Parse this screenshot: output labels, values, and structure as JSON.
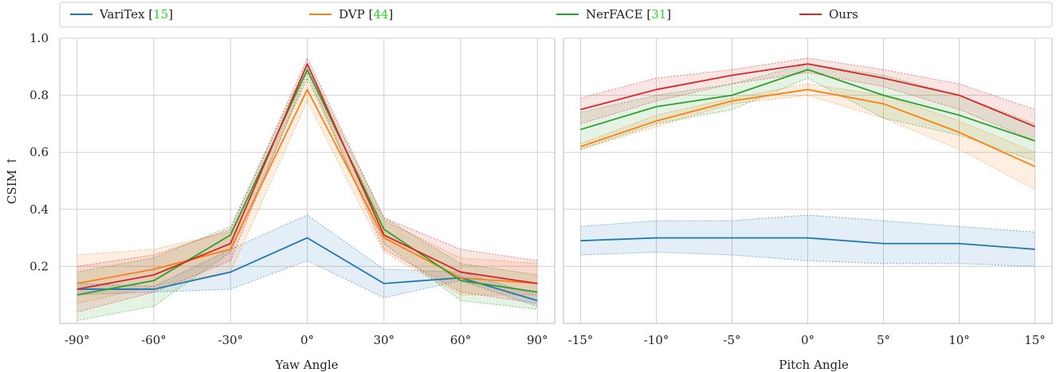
{
  "legend": [
    {
      "name": "VariTex",
      "ref": "15",
      "color": "#1f77b4"
    },
    {
      "name": "DVP",
      "ref": "44",
      "color": "#ff7f0e"
    },
    {
      "name": "NerFACE",
      "ref": "31",
      "color": "#2ca02c"
    },
    {
      "name": "Ours",
      "ref": "",
      "color": "#d62728"
    }
  ],
  "colors": {
    "ref_link": "#22dd22",
    "grid": "#d0d0d0",
    "frame": "#bbbbbb"
  },
  "chart_data": [
    {
      "type": "line",
      "xlabel": "Yaw Angle",
      "ylabel": "CSIM ↑",
      "x_tick_labels": [
        "-90°",
        "-60°",
        "-30°",
        "0°",
        "30°",
        "60°",
        "90°"
      ],
      "x": [
        -90,
        -60,
        -30,
        0,
        30,
        60,
        90
      ],
      "ylim": [
        0.0,
        1.0
      ],
      "yticks": [
        "0.2",
        "0.4",
        "0.6",
        "0.8",
        "1.0"
      ],
      "grid": true,
      "legend_position": "top",
      "series": [
        {
          "name": "VariTex",
          "values": [
            0.12,
            0.12,
            0.18,
            0.3,
            0.14,
            0.16,
            0.08
          ],
          "lower": [
            0.1,
            0.11,
            0.12,
            0.22,
            0.09,
            0.15,
            0.06
          ],
          "upper": [
            0.14,
            0.13,
            0.26,
            0.38,
            0.19,
            0.18,
            0.1
          ]
        },
        {
          "name": "DVP",
          "values": [
            0.14,
            0.19,
            0.26,
            0.82,
            0.3,
            0.16,
            0.14
          ],
          "lower": [
            0.07,
            0.13,
            0.18,
            0.78,
            0.25,
            0.1,
            0.1
          ],
          "upper": [
            0.24,
            0.26,
            0.32,
            0.86,
            0.36,
            0.23,
            0.21
          ]
        },
        {
          "name": "NerFACE",
          "values": [
            0.1,
            0.15,
            0.31,
            0.89,
            0.33,
            0.15,
            0.11
          ],
          "lower": [
            0.01,
            0.06,
            0.25,
            0.86,
            0.28,
            0.08,
            0.05
          ],
          "upper": [
            0.18,
            0.23,
            0.34,
            0.91,
            0.37,
            0.21,
            0.17
          ]
        },
        {
          "name": "Ours",
          "values": [
            0.12,
            0.17,
            0.28,
            0.91,
            0.31,
            0.18,
            0.14
          ],
          "lower": [
            0.04,
            0.11,
            0.22,
            0.88,
            0.26,
            0.11,
            0.07
          ],
          "upper": [
            0.2,
            0.24,
            0.33,
            0.93,
            0.37,
            0.26,
            0.22
          ]
        }
      ]
    },
    {
      "type": "line",
      "xlabel": "Pitch Angle",
      "x_tick_labels": [
        "-15°",
        "-10°",
        "-5°",
        "0°",
        "5°",
        "10°",
        "15°"
      ],
      "x": [
        -15,
        -10,
        -5,
        0,
        5,
        10,
        15
      ],
      "ylim": [
        0.0,
        1.0
      ],
      "grid": true,
      "series": [
        {
          "name": "VariTex",
          "values": [
            0.29,
            0.3,
            0.3,
            0.3,
            0.28,
            0.28,
            0.26
          ],
          "lower": [
            0.24,
            0.25,
            0.24,
            0.22,
            0.21,
            0.21,
            0.2
          ],
          "upper": [
            0.34,
            0.36,
            0.36,
            0.38,
            0.36,
            0.34,
            0.32
          ]
        },
        {
          "name": "DVP",
          "values": [
            0.62,
            0.71,
            0.78,
            0.82,
            0.77,
            0.67,
            0.55
          ],
          "lower": [
            0.61,
            0.69,
            0.77,
            0.8,
            0.72,
            0.61,
            0.47
          ],
          "upper": [
            0.63,
            0.73,
            0.79,
            0.84,
            0.8,
            0.71,
            0.6
          ]
        },
        {
          "name": "NerFACE",
          "values": [
            0.68,
            0.76,
            0.8,
            0.89,
            0.8,
            0.73,
            0.64
          ],
          "lower": [
            0.61,
            0.7,
            0.75,
            0.86,
            0.72,
            0.66,
            0.57
          ],
          "upper": [
            0.74,
            0.8,
            0.84,
            0.91,
            0.87,
            0.8,
            0.7
          ]
        },
        {
          "name": "Ours",
          "values": [
            0.75,
            0.82,
            0.87,
            0.91,
            0.86,
            0.8,
            0.69
          ],
          "lower": [
            0.7,
            0.78,
            0.84,
            0.88,
            0.83,
            0.75,
            0.64
          ],
          "upper": [
            0.79,
            0.86,
            0.89,
            0.93,
            0.89,
            0.84,
            0.75
          ]
        }
      ]
    }
  ]
}
